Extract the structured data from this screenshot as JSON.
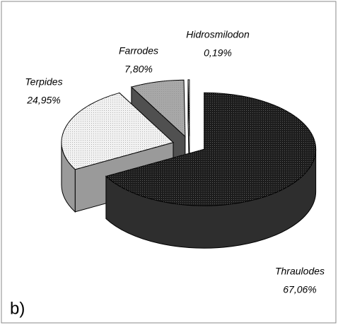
{
  "chart_data": {
    "type": "pie",
    "label": "b)",
    "categories": [
      "Thraulodes",
      "Terpides",
      "Farrodes",
      "Hidrosmilodon"
    ],
    "values": [
      67.06,
      24.95,
      7.8,
      0.19
    ],
    "value_labels": [
      "67,06%",
      "24,95%",
      "7,80%",
      "0,19%"
    ],
    "colors": [
      "#1c1c1c",
      "#f2f2f2",
      "#a8a8a8",
      "#ffffff"
    ],
    "side_colors": [
      "#2e2e2e",
      "#9a9a9a",
      "#505050",
      "#ffffff"
    ]
  }
}
